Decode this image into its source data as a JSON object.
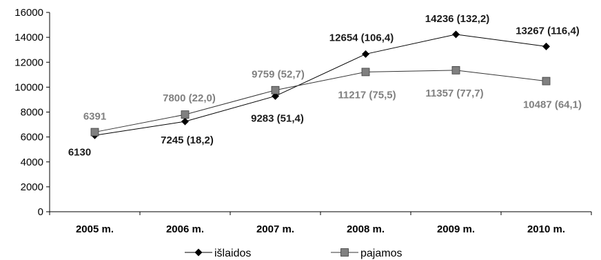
{
  "chart_data": {
    "type": "line",
    "categories": [
      "2005 m.",
      "2006 m.",
      "2007 m.",
      "2008 m.",
      "2009 m.",
      "2010 m."
    ],
    "yticks": [
      "0",
      "2000",
      "4000",
      "6000",
      "8000",
      "10000",
      "12000",
      "14000",
      "16000"
    ],
    "ylim": [
      0,
      16000
    ],
    "grid": false,
    "legend_position": "bottom",
    "series": [
      {
        "name": "išlaidos",
        "color": "#000000",
        "marker": "diamond",
        "values": [
          6130,
          7245,
          9283,
          12654,
          14236,
          13267
        ],
        "labels": [
          "6130",
          "7245 (18,2)",
          "9283 (51,4)",
          "12654 (106,4)",
          "14236 (132,2)",
          "13267 (116,4)"
        ]
      },
      {
        "name": "pajamos",
        "color": "#808080",
        "marker": "square",
        "values": [
          6391,
          7800,
          9759,
          11217,
          11357,
          10487
        ],
        "labels": [
          "6391",
          "7800 (22,0)",
          "9759 (52,7)",
          "11217 (75,5)",
          "11357 (77,7)",
          "10487 (64,1)"
        ]
      }
    ]
  }
}
